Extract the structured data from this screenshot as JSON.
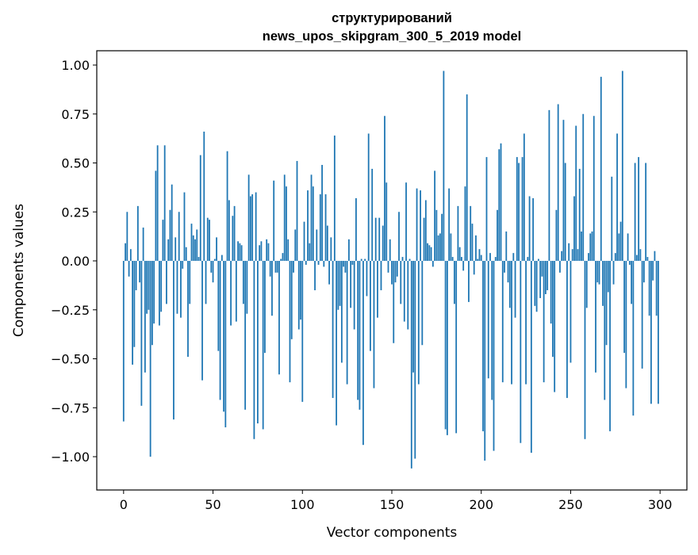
{
  "chart_data": {
    "type": "bar",
    "title_lines": [
      "структурирований",
      "news_upos_skipgram_300_5_2019 model"
    ],
    "xlabel": "Vector components",
    "ylabel": "Components values",
    "xlim": [
      -15,
      315
    ],
    "ylim": [
      -1.17,
      1.073
    ],
    "xticks": [
      0,
      50,
      100,
      150,
      200,
      250,
      300
    ],
    "xtick_labels": [
      "0",
      "50",
      "100",
      "150",
      "200",
      "250",
      "300"
    ],
    "yticks": [
      1.0,
      0.75,
      0.5,
      0.25,
      0.0,
      -0.25,
      -0.5,
      -0.75,
      -1.0
    ],
    "ytick_labels": [
      "1.00",
      "0.75",
      "0.50",
      "0.25",
      "0.00",
      "−0.25",
      "−0.50",
      "−0.75",
      "−1.00"
    ],
    "grid": false,
    "color": "#1f77b4",
    "values": [
      -0.82,
      0.09,
      0.25,
      -0.08,
      0.06,
      -0.53,
      -0.44,
      -0.15,
      0.28,
      -0.11,
      -0.74,
      0.17,
      -0.57,
      -0.27,
      -0.25,
      -1.0,
      -0.43,
      -0.32,
      0.46,
      0.59,
      -0.33,
      -0.26,
      0.21,
      0.59,
      -0.22,
      0.11,
      0.26,
      0.39,
      -0.81,
      0.12,
      -0.27,
      0.25,
      -0.29,
      -0.04,
      0.35,
      0.07,
      -0.49,
      -0.22,
      0.19,
      0.13,
      0.11,
      0.16,
      0.02,
      0.54,
      -0.61,
      0.66,
      -0.22,
      0.22,
      0.21,
      -0.06,
      -0.11,
      0.01,
      0.12,
      -0.46,
      -0.71,
      0.03,
      -0.77,
      -0.85,
      0.56,
      0.31,
      -0.33,
      0.23,
      0.28,
      -0.31,
      0.1,
      0.09,
      0.08,
      -0.22,
      -0.76,
      -0.27,
      0.44,
      0.33,
      0.34,
      -0.91,
      0.35,
      -0.83,
      0.08,
      0.1,
      -0.86,
      -0.47,
      0.11,
      0.09,
      -0.08,
      -0.28,
      0.41,
      -0.06,
      -0.06,
      -0.58,
      0.01,
      0.04,
      0.44,
      0.38,
      0.11,
      -0.62,
      -0.4,
      -0.06,
      0.16,
      0.51,
      -0.35,
      -0.3,
      -0.72,
      0.2,
      -0.02,
      0.36,
      0.09,
      0.44,
      0.38,
      -0.15,
      0.16,
      -0.02,
      0.34,
      0.49,
      -0.03,
      0.34,
      0.18,
      -0.12,
      0.12,
      -0.7,
      0.64,
      -0.84,
      -0.25,
      -0.23,
      -0.52,
      -0.03,
      -0.06,
      -0.63,
      0.11,
      -0.24,
      -0.02,
      -0.35,
      0.32,
      -0.71,
      -0.76,
      0.01,
      -0.94,
      0.01,
      -0.18,
      0.65,
      -0.46,
      0.47,
      -0.65,
      0.22,
      -0.29,
      0.22,
      -0.15,
      0.18,
      0.74,
      0.4,
      -0.06,
      0.11,
      -0.12,
      -0.42,
      -0.11,
      -0.08,
      0.25,
      -0.22,
      0.02,
      -0.31,
      0.4,
      -0.35,
      0.01,
      -1.06,
      -0.57,
      -1.01,
      0.37,
      -0.63,
      0.36,
      -0.43,
      0.22,
      0.31,
      0.09,
      0.08,
      0.07,
      -0.03,
      0.46,
      0.26,
      0.13,
      0.14,
      0.24,
      0.97,
      -0.86,
      -0.89,
      0.37,
      0.14,
      0.02,
      -0.22,
      -0.88,
      0.28,
      0.07,
      0.02,
      -0.05,
      0.38,
      0.85,
      -0.21,
      0.28,
      0.19,
      -0.07,
      0.13,
      0.01,
      0.06,
      0.03,
      -0.87,
      -1.02,
      0.53,
      -0.6,
      0.04,
      -0.71,
      -0.97,
      0.02,
      0.26,
      0.57,
      0.6,
      -0.62,
      -0.06,
      0.15,
      -0.11,
      -0.24,
      -0.63,
      0.04,
      -0.29,
      0.53,
      0.5,
      -0.93,
      0.53,
      0.65,
      -0.63,
      0.02,
      0.33,
      -0.98,
      0.32,
      -0.23,
      -0.26,
      0.01,
      -0.19,
      -0.08,
      -0.62,
      -0.17,
      -0.15,
      0.77,
      -0.32,
      -0.49,
      -0.67,
      0.26,
      0.8,
      -0.06,
      0.05,
      0.72,
      0.5,
      -0.7,
      0.09,
      -0.52,
      0.06,
      0.33,
      0.69,
      0.06,
      0.47,
      0.15,
      0.75,
      -0.91,
      -0.24,
      0.04,
      0.14,
      0.15,
      0.74,
      -0.57,
      -0.11,
      -0.12,
      0.94,
      -0.23,
      -0.71,
      -0.43,
      -0.16,
      -0.87,
      0.43,
      -0.12,
      0.04,
      0.65,
      0.14,
      0.2,
      0.97,
      -0.47,
      -0.65,
      0.14,
      -0.02,
      -0.22,
      -0.79,
      0.5,
      0.03,
      0.53,
      0.06,
      -0.55,
      -0.11,
      0.5,
      0.02,
      -0.28,
      -0.73,
      -0.1,
      0.05,
      -0.28,
      -0.73
    ]
  }
}
